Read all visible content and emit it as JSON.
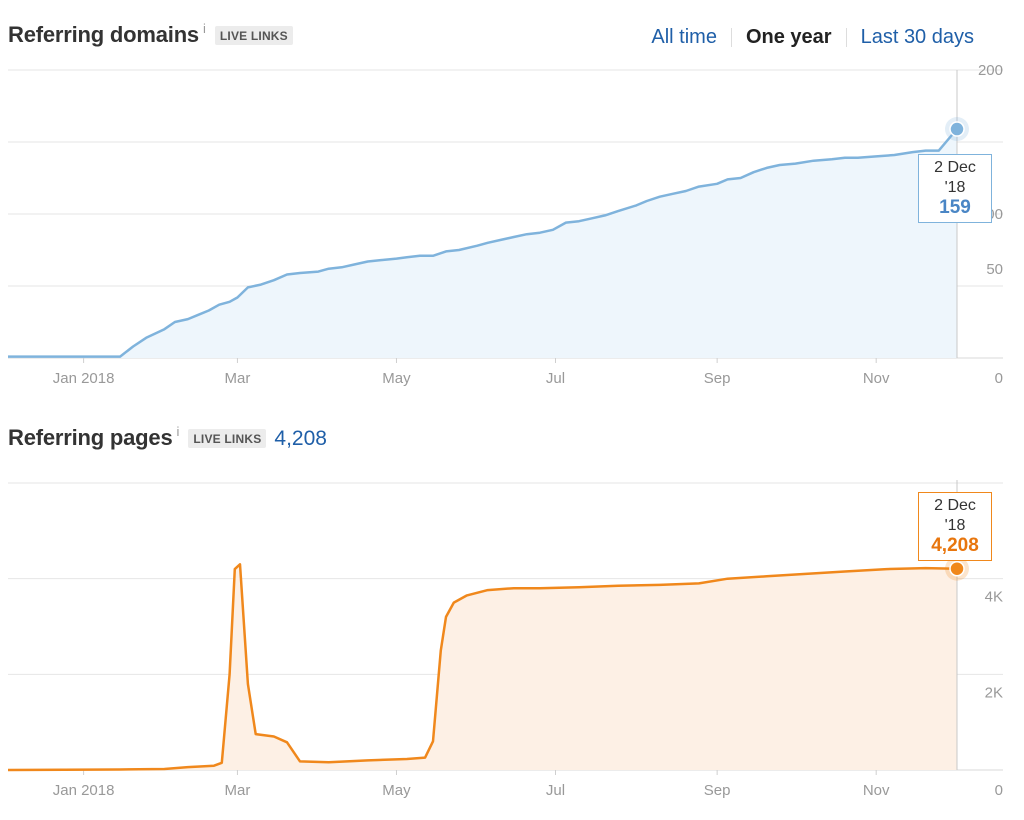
{
  "domains_section": {
    "title": "Referring domains",
    "info_icon": "i",
    "badge": "LIVE LINKS",
    "ranges": [
      "All time",
      "One year",
      "Last 30 days"
    ],
    "active_range": "One year",
    "tooltip": {
      "date": "2 Dec '18",
      "value": "159"
    }
  },
  "pages_section": {
    "title": "Referring pages",
    "info_icon": "i",
    "badge": "LIVE LINKS",
    "total": "4,208",
    "tooltip": {
      "date": "2 Dec '18",
      "value": "4,208"
    }
  },
  "colors": {
    "domains_line": "#7fb3dc",
    "domains_fill": "#eef6fc",
    "domains_tooltip_value": "#4a86c5",
    "pages_line": "#f0881c",
    "pages_fill": "#fdf0e5",
    "pages_tooltip_value": "#e8760e",
    "link": "#1f5fa8"
  },
  "chart_data": [
    {
      "type": "area",
      "title": "Referring domains",
      "x_tick_labels": [
        "Jan 2018",
        "Mar",
        "May",
        "Jul",
        "Sep",
        "Nov"
      ],
      "y_tick_labels": [
        "0",
        "50",
        "100",
        "200"
      ],
      "ylim": [
        0,
        200
      ],
      "grid": true,
      "series": [
        {
          "x": [
            "2017-12-03",
            "2018-01-08",
            "2018-01-15",
            "2018-01-20",
            "2018-01-25",
            "2018-02-01",
            "2018-02-05",
            "2018-02-10",
            "2018-02-14",
            "2018-02-18",
            "2018-02-22",
            "2018-02-26",
            "2018-03-01",
            "2018-03-05",
            "2018-03-10",
            "2018-03-15",
            "2018-03-20",
            "2018-03-25",
            "2018-04-01",
            "2018-04-05",
            "2018-04-10",
            "2018-04-15",
            "2018-04-20",
            "2018-04-25",
            "2018-05-01",
            "2018-05-05",
            "2018-05-10",
            "2018-05-15",
            "2018-05-20",
            "2018-05-25",
            "2018-06-01",
            "2018-06-05",
            "2018-06-10",
            "2018-06-15",
            "2018-06-20",
            "2018-06-25",
            "2018-06-30",
            "2018-07-05",
            "2018-07-10",
            "2018-07-15",
            "2018-07-20",
            "2018-07-25",
            "2018-08-01",
            "2018-08-05",
            "2018-08-10",
            "2018-08-15",
            "2018-08-20",
            "2018-08-25",
            "2018-09-01",
            "2018-09-05",
            "2018-09-10",
            "2018-09-15",
            "2018-09-20",
            "2018-09-25",
            "2018-10-01",
            "2018-10-08",
            "2018-10-15",
            "2018-10-20",
            "2018-10-25",
            "2018-11-01",
            "2018-11-08",
            "2018-11-15",
            "2018-11-20",
            "2018-11-25",
            "2018-12-02"
          ],
          "values": [
            1,
            1,
            1,
            8,
            14,
            20,
            25,
            27,
            30,
            33,
            37,
            39,
            42,
            49,
            51,
            54,
            58,
            59,
            60,
            62,
            63,
            65,
            67,
            68,
            69,
            70,
            71,
            71,
            74,
            75,
            78,
            80,
            82,
            84,
            86,
            87,
            89,
            94,
            95,
            97,
            99,
            102,
            106,
            109,
            112,
            114,
            116,
            119,
            121,
            124,
            125,
            129,
            132,
            134,
            135,
            137,
            138,
            139,
            139,
            140,
            141,
            143,
            144,
            144,
            159
          ]
        }
      ]
    },
    {
      "type": "area",
      "title": "Referring pages",
      "x_tick_labels": [
        "Jan 2018",
        "Mar",
        "May",
        "Jul",
        "Sep",
        "Nov"
      ],
      "y_tick_labels": [
        "0",
        "2K",
        "4K"
      ],
      "ylim": [
        0,
        6000
      ],
      "grid": true,
      "series": [
        {
          "x": [
            "2017-12-03",
            "2018-01-15",
            "2018-02-01",
            "2018-02-10",
            "2018-02-20",
            "2018-02-23",
            "2018-02-26",
            "2018-02-28",
            "2018-03-02",
            "2018-03-05",
            "2018-03-08",
            "2018-03-15",
            "2018-03-20",
            "2018-03-25",
            "2018-04-05",
            "2018-04-20",
            "2018-05-05",
            "2018-05-12",
            "2018-05-15",
            "2018-05-18",
            "2018-05-20",
            "2018-05-23",
            "2018-05-28",
            "2018-06-05",
            "2018-06-15",
            "2018-06-25",
            "2018-07-10",
            "2018-07-25",
            "2018-08-10",
            "2018-08-25",
            "2018-09-05",
            "2018-09-20",
            "2018-10-05",
            "2018-10-20",
            "2018-11-05",
            "2018-11-20",
            "2018-12-02"
          ],
          "values": [
            0,
            10,
            20,
            60,
            90,
            150,
            2000,
            4200,
            4300,
            1800,
            750,
            700,
            580,
            180,
            160,
            200,
            230,
            260,
            600,
            2500,
            3200,
            3500,
            3650,
            3760,
            3800,
            3800,
            3820,
            3850,
            3870,
            3900,
            4000,
            4050,
            4100,
            4150,
            4200,
            4220,
            4208
          ]
        }
      ]
    }
  ]
}
